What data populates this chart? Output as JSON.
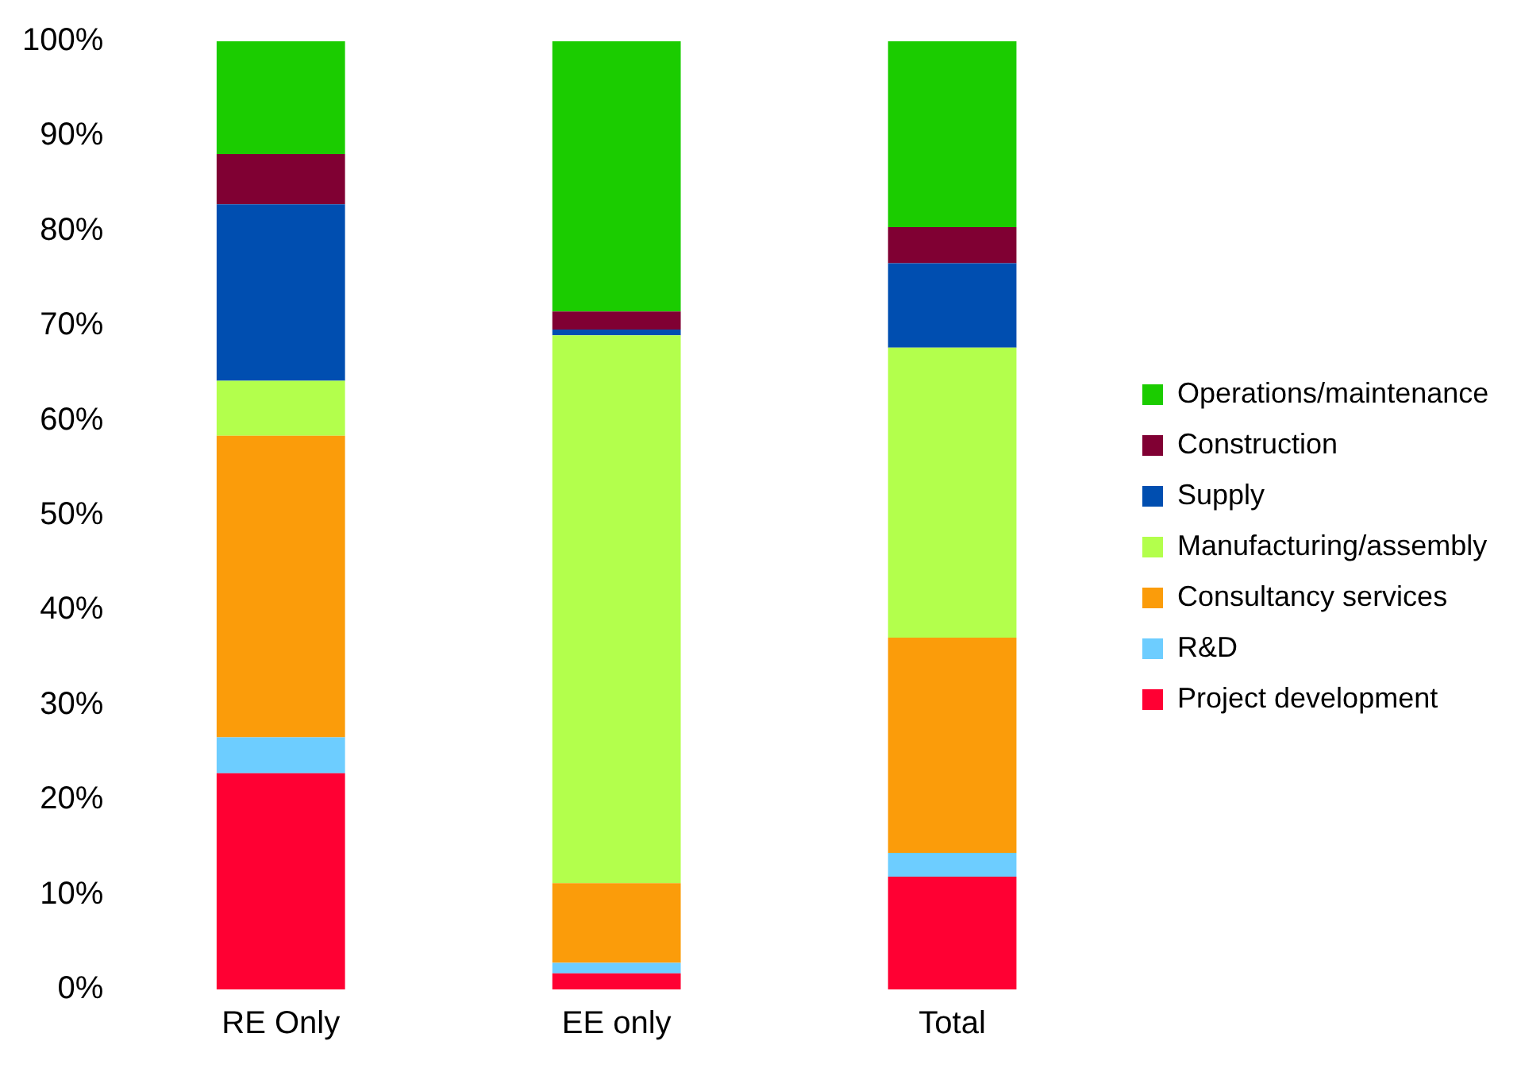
{
  "chart_data": {
    "type": "bar",
    "stacked": true,
    "categories": [
      "RE Only",
      "EE only",
      "Total"
    ],
    "series": [
      {
        "name": "Project development",
        "color": "#ff0033",
        "values": [
          22.8,
          1.7,
          11.9
        ]
      },
      {
        "name": "R&D",
        "color": "#6dcdff",
        "values": [
          3.8,
          1.1,
          2.5
        ]
      },
      {
        "name": "Consultancy services",
        "color": "#fb9c0a",
        "values": [
          31.8,
          8.4,
          22.7
        ]
      },
      {
        "name": "Manufacturing/assembly",
        "color": "#b3ff4c",
        "values": [
          5.8,
          57.8,
          30.6
        ]
      },
      {
        "name": "Supply",
        "color": "#004eb0",
        "values": [
          18.6,
          0.6,
          8.9
        ]
      },
      {
        "name": "Construction",
        "color": "#800033",
        "values": [
          5.3,
          1.9,
          3.8
        ]
      },
      {
        "name": "Operations/maintenance",
        "color": "#1bcc00",
        "values": [
          11.9,
          28.5,
          19.6
        ]
      }
    ],
    "ylim": [
      0,
      100
    ],
    "yticks": [
      {
        "value": 0,
        "label": "0%"
      },
      {
        "value": 10,
        "label": "10%"
      },
      {
        "value": 20,
        "label": "20%"
      },
      {
        "value": 30,
        "label": "30%"
      },
      {
        "value": 40,
        "label": "40%"
      },
      {
        "value": 50,
        "label": "50%"
      },
      {
        "value": 60,
        "label": "60%"
      },
      {
        "value": 70,
        "label": "70%"
      },
      {
        "value": 80,
        "label": "80%"
      },
      {
        "value": 90,
        "label": "90%"
      },
      {
        "value": 100,
        "label": "100%"
      }
    ],
    "grid": false,
    "legend": "right"
  }
}
